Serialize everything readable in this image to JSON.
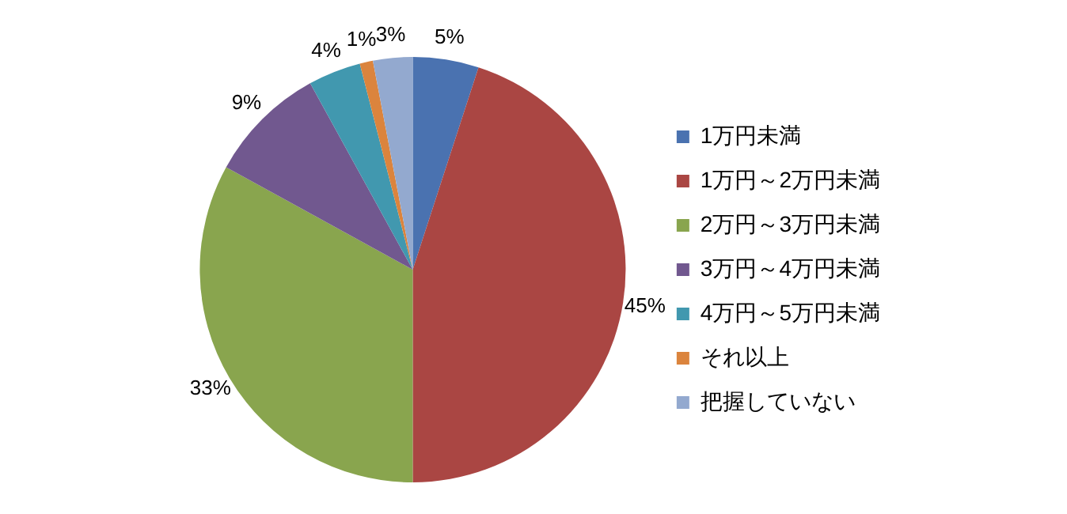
{
  "chart_data": {
    "type": "pie",
    "categories": [
      "1万円未満",
      "1万円～2万円未満",
      "2万円～3万円未満",
      "3万円～4万円未満",
      "4万円～5万円未満",
      "それ以上",
      "把握していない"
    ],
    "values": [
      5,
      45,
      33,
      9,
      4,
      1,
      3
    ],
    "colors": [
      "#4a72b0",
      "#aa4643",
      "#89a54e",
      "#71588f",
      "#4198af",
      "#db843d",
      "#93a9cf"
    ],
    "value_labels": [
      "5%",
      "45%",
      "33%",
      "9%",
      "4%",
      "1%",
      "3%"
    ],
    "legend": "right"
  }
}
